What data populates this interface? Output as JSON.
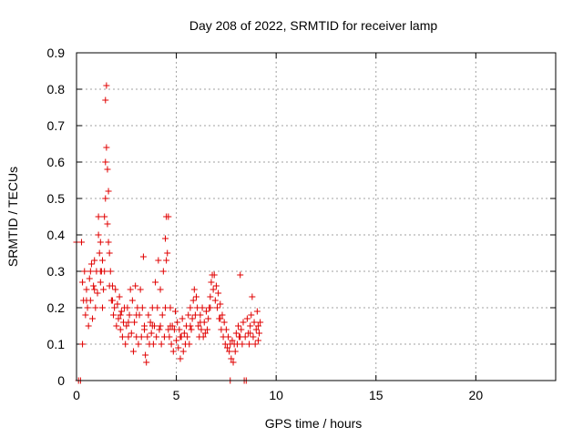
{
  "chart_data": {
    "type": "scatter",
    "title": "Day 208 of 2022, SRMTID for receiver lamp",
    "xlabel": "GPS time / hours",
    "ylabel": "SRMTID / TECUs",
    "xlim": [
      0,
      24
    ],
    "ylim": [
      0,
      0.9
    ],
    "xticks": [
      0,
      5,
      10,
      15,
      20
    ],
    "yticks": [
      0,
      0.1,
      0.2,
      0.3,
      0.4,
      0.5,
      0.6,
      0.7,
      0.8,
      0.9
    ],
    "xtick_labels": [
      "0",
      "5",
      "10",
      "15",
      "20"
    ],
    "ytick_labels": [
      "0",
      "0.1",
      "0.2",
      "0.3",
      "0.4",
      "0.5",
      "0.6",
      "0.7",
      "0.8",
      "0.9"
    ],
    "grid": true,
    "marker": "+",
    "color": "#e00000",
    "series": [
      {
        "name": "SRMTID",
        "points": [
          [
            0.0,
            0.38
          ],
          [
            0.1,
            0.0
          ],
          [
            0.2,
            0.0
          ],
          [
            0.25,
            0.38
          ],
          [
            0.3,
            0.1
          ],
          [
            0.3,
            0.27
          ],
          [
            0.35,
            0.22
          ],
          [
            0.4,
            0.3
          ],
          [
            0.45,
            0.18
          ],
          [
            0.5,
            0.25
          ],
          [
            0.55,
            0.2
          ],
          [
            0.6,
            0.15
          ],
          [
            0.65,
            0.28
          ],
          [
            0.7,
            0.22
          ],
          [
            0.75,
            0.32
          ],
          [
            0.8,
            0.17
          ],
          [
            0.85,
            0.26
          ],
          [
            0.9,
            0.33
          ],
          [
            0.95,
            0.2
          ],
          [
            1.0,
            0.3
          ],
          [
            1.05,
            0.24
          ],
          [
            1.1,
            0.4
          ],
          [
            1.1,
            0.45
          ],
          [
            1.15,
            0.35
          ],
          [
            1.2,
            0.27
          ],
          [
            1.2,
            0.38
          ],
          [
            1.25,
            0.3
          ],
          [
            1.3,
            0.2
          ],
          [
            1.3,
            0.33
          ],
          [
            1.35,
            0.25
          ],
          [
            1.4,
            0.3
          ],
          [
            1.4,
            0.45
          ],
          [
            1.45,
            0.5
          ],
          [
            1.45,
            0.6
          ],
          [
            1.45,
            0.77
          ],
          [
            1.5,
            0.81
          ],
          [
            1.5,
            0.64
          ],
          [
            1.55,
            0.58
          ],
          [
            1.55,
            0.43
          ],
          [
            1.6,
            0.52
          ],
          [
            1.6,
            0.38
          ],
          [
            1.65,
            0.35
          ],
          [
            1.65,
            0.26
          ],
          [
            1.7,
            0.3
          ],
          [
            1.75,
            0.22
          ],
          [
            1.8,
            0.26
          ],
          [
            1.85,
            0.18
          ],
          [
            1.9,
            0.2
          ],
          [
            1.95,
            0.25
          ],
          [
            2.0,
            0.15
          ],
          [
            2.05,
            0.21
          ],
          [
            2.1,
            0.17
          ],
          [
            2.15,
            0.23
          ],
          [
            2.2,
            0.14
          ],
          [
            2.25,
            0.19
          ],
          [
            2.3,
            0.12
          ],
          [
            2.35,
            0.16
          ],
          [
            2.4,
            0.2
          ],
          [
            2.45,
            0.1
          ],
          [
            2.5,
            0.15
          ],
          [
            2.55,
            0.2
          ],
          [
            2.6,
            0.12
          ],
          [
            2.65,
            0.18
          ],
          [
            2.7,
            0.25
          ],
          [
            2.75,
            0.13
          ],
          [
            2.8,
            0.22
          ],
          [
            2.85,
            0.08
          ],
          [
            2.9,
            0.16
          ],
          [
            2.95,
            0.26
          ],
          [
            3.0,
            0.12
          ],
          [
            3.05,
            0.2
          ],
          [
            3.1,
            0.1
          ],
          [
            3.15,
            0.18
          ],
          [
            3.2,
            0.25
          ],
          [
            3.25,
            0.12
          ],
          [
            3.3,
            0.2
          ],
          [
            3.35,
            0.34
          ],
          [
            3.4,
            0.15
          ],
          [
            3.45,
            0.07
          ],
          [
            3.5,
            0.05
          ],
          [
            3.55,
            0.12
          ],
          [
            3.6,
            0.18
          ],
          [
            3.65,
            0.1
          ],
          [
            3.7,
            0.16
          ],
          [
            3.75,
            0.13
          ],
          [
            3.8,
            0.2
          ],
          [
            3.85,
            0.1
          ],
          [
            3.9,
            0.15
          ],
          [
            3.95,
            0.27
          ],
          [
            4.0,
            0.12
          ],
          [
            4.05,
            0.2
          ],
          [
            4.1,
            0.33
          ],
          [
            4.15,
            0.14
          ],
          [
            4.2,
            0.25
          ],
          [
            4.25,
            0.1
          ],
          [
            4.3,
            0.18
          ],
          [
            4.35,
            0.3
          ],
          [
            4.4,
            0.12
          ],
          [
            4.45,
            0.2
          ],
          [
            4.45,
            0.39
          ],
          [
            4.5,
            0.45
          ],
          [
            4.5,
            0.33
          ],
          [
            4.55,
            0.35
          ],
          [
            4.6,
            0.14
          ],
          [
            4.6,
            0.45
          ],
          [
            4.65,
            0.12
          ],
          [
            4.7,
            0.2
          ],
          [
            4.75,
            0.1
          ],
          [
            4.8,
            0.15
          ],
          [
            4.85,
            0.08
          ],
          [
            4.9,
            0.14
          ],
          [
            4.95,
            0.19
          ],
          [
            5.0,
            0.11
          ],
          [
            5.05,
            0.16
          ],
          [
            5.1,
            0.09
          ],
          [
            5.15,
            0.14
          ],
          [
            5.2,
            0.06
          ],
          [
            5.25,
            0.12
          ],
          [
            5.3,
            0.17
          ],
          [
            5.35,
            0.08
          ],
          [
            5.4,
            0.13
          ],
          [
            5.45,
            0.1
          ],
          [
            5.5,
            0.15
          ],
          [
            5.55,
            0.12
          ],
          [
            5.6,
            0.18
          ],
          [
            5.65,
            0.1
          ],
          [
            5.7,
            0.2
          ],
          [
            5.75,
            0.14
          ],
          [
            5.8,
            0.17
          ],
          [
            5.85,
            0.22
          ],
          [
            5.9,
            0.25
          ],
          [
            5.95,
            0.18
          ],
          [
            6.0,
            0.23
          ],
          [
            6.05,
            0.2
          ],
          [
            6.1,
            0.15
          ],
          [
            6.15,
            0.12
          ],
          [
            6.2,
            0.18
          ],
          [
            6.25,
            0.14
          ],
          [
            6.3,
            0.2
          ],
          [
            6.35,
            0.12
          ],
          [
            6.4,
            0.16
          ],
          [
            6.45,
            0.13
          ],
          [
            6.5,
            0.19
          ],
          [
            6.55,
            0.14
          ],
          [
            6.6,
            0.17
          ],
          [
            6.65,
            0.2
          ],
          [
            6.7,
            0.23
          ],
          [
            6.75,
            0.27
          ],
          [
            6.8,
            0.29
          ],
          [
            6.85,
            0.25
          ],
          [
            6.9,
            0.29
          ],
          [
            6.95,
            0.22
          ],
          [
            7.0,
            0.26
          ],
          [
            7.05,
            0.2
          ],
          [
            7.1,
            0.24
          ],
          [
            7.15,
            0.17
          ],
          [
            7.2,
            0.21
          ],
          [
            7.25,
            0.14
          ],
          [
            7.3,
            0.18
          ],
          [
            7.35,
            0.12
          ],
          [
            7.4,
            0.16
          ],
          [
            7.45,
            0.1
          ],
          [
            7.5,
            0.14
          ],
          [
            7.55,
            0.09
          ],
          [
            7.6,
            0.12
          ],
          [
            7.65,
            0.08
          ],
          [
            7.7,
            0.0
          ],
          [
            7.75,
            0.06
          ],
          [
            7.8,
            0.11
          ],
          [
            7.85,
            0.05
          ],
          [
            7.9,
            0.1
          ],
          [
            7.95,
            0.08
          ],
          [
            8.0,
            0.13
          ],
          [
            8.05,
            0.1
          ],
          [
            8.1,
            0.15
          ],
          [
            8.15,
            0.12
          ],
          [
            8.2,
            0.29
          ],
          [
            8.25,
            0.14
          ],
          [
            8.3,
            0.1
          ],
          [
            8.35,
            0.16
          ],
          [
            8.4,
            0.0
          ],
          [
            8.45,
            0.12
          ],
          [
            8.5,
            0.0
          ],
          [
            8.55,
            0.17
          ],
          [
            8.6,
            0.13
          ],
          [
            8.65,
            0.1
          ],
          [
            8.7,
            0.15
          ],
          [
            8.75,
            0.18
          ],
          [
            8.8,
            0.23
          ],
          [
            8.85,
            0.12
          ],
          [
            8.9,
            0.16
          ],
          [
            8.95,
            0.1
          ],
          [
            9.0,
            0.14
          ],
          [
            9.05,
            0.19
          ],
          [
            9.1,
            0.11
          ],
          [
            9.15,
            0.13
          ],
          [
            9.2,
            0.16
          ],
          [
            0.5,
            0.22
          ],
          [
            0.7,
            0.3
          ],
          [
            0.9,
            0.25
          ],
          [
            1.2,
            0.3
          ],
          [
            1.8,
            0.22
          ],
          [
            2.2,
            0.18
          ],
          [
            2.6,
            0.16
          ],
          [
            3.0,
            0.18
          ],
          [
            3.4,
            0.14
          ],
          [
            3.8,
            0.15
          ],
          [
            4.2,
            0.15
          ],
          [
            4.7,
            0.15
          ],
          [
            5.2,
            0.12
          ],
          [
            5.7,
            0.15
          ],
          [
            6.2,
            0.16
          ],
          [
            6.7,
            0.2
          ],
          [
            7.2,
            0.17
          ],
          [
            7.7,
            0.1
          ],
          [
            8.2,
            0.12
          ],
          [
            8.7,
            0.13
          ],
          [
            9.1,
            0.15
          ]
        ]
      }
    ]
  }
}
